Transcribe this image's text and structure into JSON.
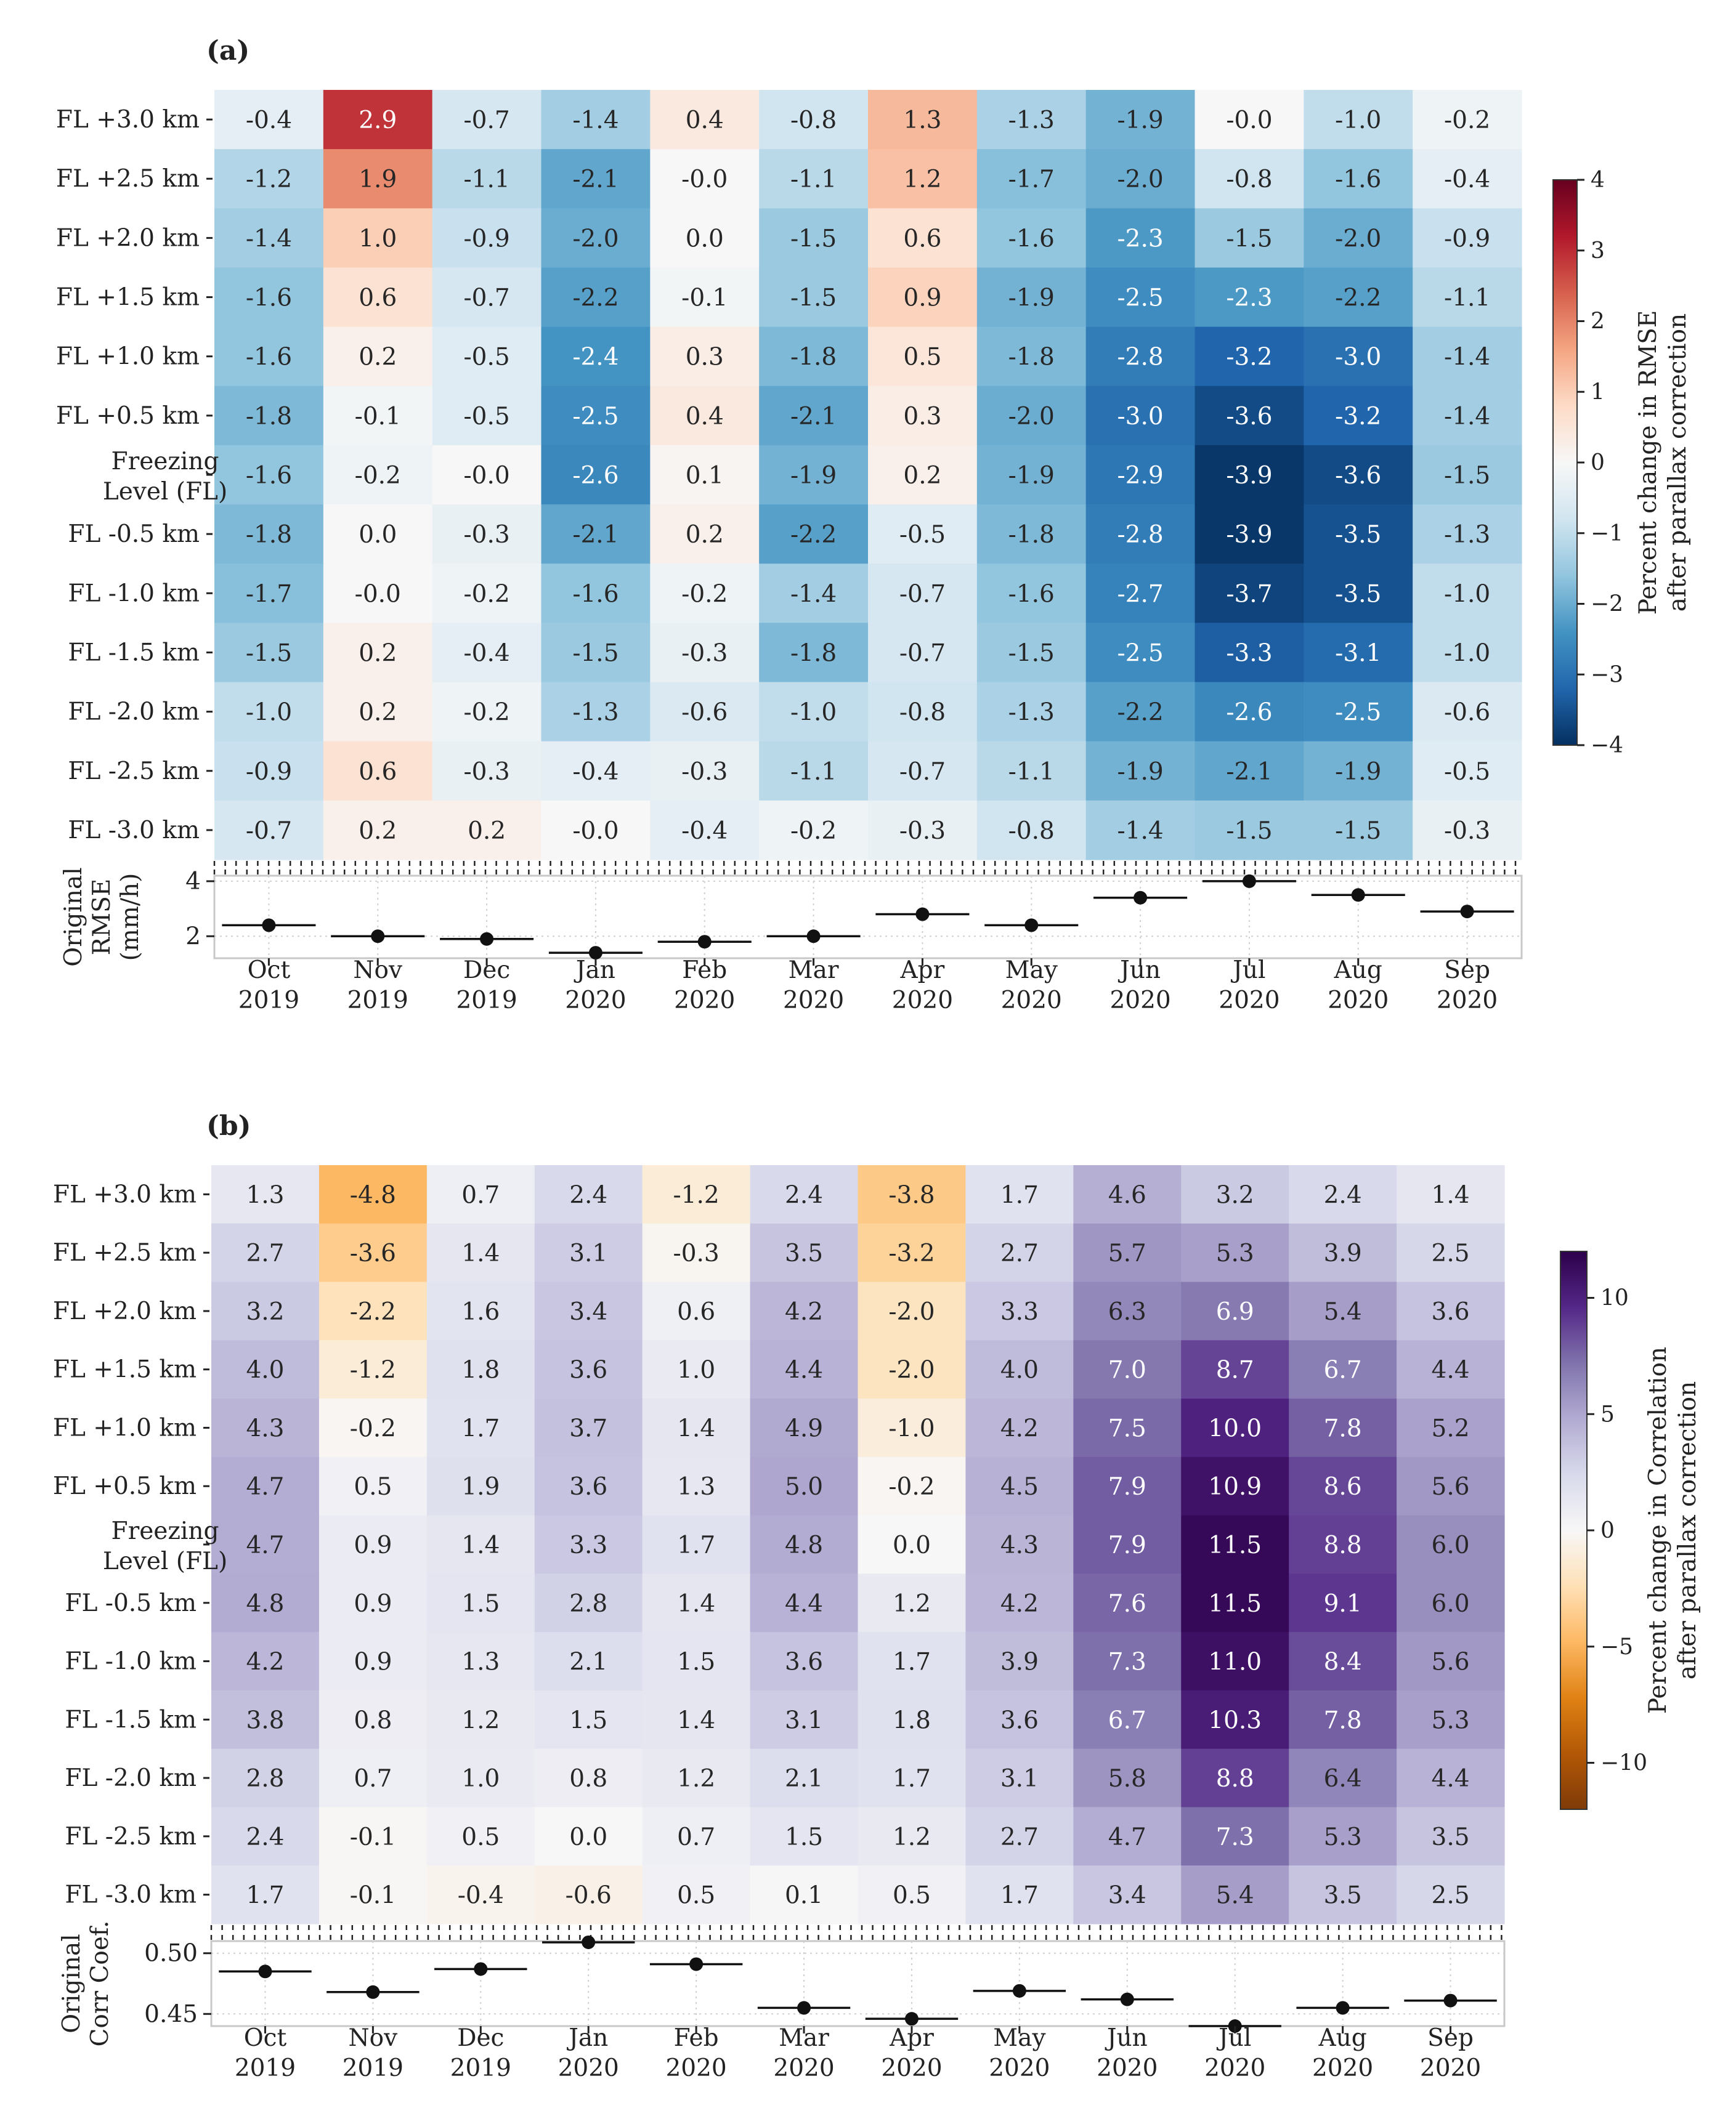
{
  "chart_data": [
    {
      "panel": "(a)",
      "type": "heatmap",
      "metric": "RMSE",
      "rows": [
        "FL +3.0 km",
        "FL +2.5 km",
        "FL +2.0 km",
        "FL +1.5 km",
        "FL +1.0 km",
        "FL +0.5 km",
        "Freezing Level (FL)",
        "FL -0.5 km",
        "FL -1.0 km",
        "FL -1.5 km",
        "FL -2.0 km",
        "FL -2.5 km",
        "FL -3.0 km"
      ],
      "columns": [
        "Oct 2019",
        "Nov 2019",
        "Dec 2019",
        "Jan 2020",
        "Feb 2020",
        "Mar 2020",
        "Apr 2020",
        "May 2020",
        "Jun 2020",
        "Jul 2020",
        "Aug 2020",
        "Sep 2020"
      ],
      "values": [
        [
          "-0.4",
          "2.9",
          "-0.7",
          "-1.4",
          "0.4",
          "-0.8",
          "1.3",
          "-1.3",
          "-1.9",
          "-0.0",
          "-1.0",
          "-0.2"
        ],
        [
          "-1.2",
          "1.9",
          "-1.1",
          "-2.1",
          "-0.0",
          "-1.1",
          "1.2",
          "-1.7",
          "-2.0",
          "-0.8",
          "-1.6",
          "-0.4"
        ],
        [
          "-1.4",
          "1.0",
          "-0.9",
          "-2.0",
          "0.0",
          "-1.5",
          "0.6",
          "-1.6",
          "-2.3",
          "-1.5",
          "-2.0",
          "-0.9"
        ],
        [
          "-1.6",
          "0.6",
          "-0.7",
          "-2.2",
          "-0.1",
          "-1.5",
          "0.9",
          "-1.9",
          "-2.5",
          "-2.3",
          "-2.2",
          "-1.1"
        ],
        [
          "-1.6",
          "0.2",
          "-0.5",
          "-2.4",
          "0.3",
          "-1.8",
          "0.5",
          "-1.8",
          "-2.8",
          "-3.2",
          "-3.0",
          "-1.4"
        ],
        [
          "-1.8",
          "-0.1",
          "-0.5",
          "-2.5",
          "0.4",
          "-2.1",
          "0.3",
          "-2.0",
          "-3.0",
          "-3.6",
          "-3.2",
          "-1.4"
        ],
        [
          "-1.6",
          "-0.2",
          "-0.0",
          "-2.6",
          "0.1",
          "-1.9",
          "0.2",
          "-1.9",
          "-2.9",
          "-3.9",
          "-3.6",
          "-1.5"
        ],
        [
          "-1.8",
          "0.0",
          "-0.3",
          "-2.1",
          "0.2",
          "-2.2",
          "-0.5",
          "-1.8",
          "-2.8",
          "-3.9",
          "-3.5",
          "-1.3"
        ],
        [
          "-1.7",
          "-0.0",
          "-0.2",
          "-1.6",
          "-0.2",
          "-1.4",
          "-0.7",
          "-1.6",
          "-2.7",
          "-3.7",
          "-3.5",
          "-1.0"
        ],
        [
          "-1.5",
          "0.2",
          "-0.4",
          "-1.5",
          "-0.3",
          "-1.8",
          "-0.7",
          "-1.5",
          "-2.5",
          "-3.3",
          "-3.1",
          "-1.0"
        ],
        [
          "-1.0",
          "0.2",
          "-0.2",
          "-1.3",
          "-0.6",
          "-1.0",
          "-0.8",
          "-1.3",
          "-2.2",
          "-2.6",
          "-2.5",
          "-0.6"
        ],
        [
          "-0.9",
          "0.6",
          "-0.3",
          "-0.4",
          "-0.3",
          "-1.1",
          "-0.7",
          "-1.1",
          "-1.9",
          "-2.1",
          "-1.9",
          "-0.5"
        ],
        [
          "-0.7",
          "0.2",
          "0.2",
          "-0.0",
          "-0.4",
          "-0.2",
          "-0.3",
          "-0.8",
          "-1.4",
          "-1.5",
          "-1.5",
          "-0.3"
        ]
      ],
      "colormap": "RdBu_r",
      "colorbar": {
        "label": "Percent change in RMSE after parallax correction",
        "range": [
          -4,
          4
        ],
        "ticks": [
          "4",
          "3",
          "2",
          "1",
          "0",
          "−1",
          "−2",
          "−3",
          "−4"
        ]
      },
      "subplot": {
        "ylabel": "Original RMSE (mm/h)",
        "ylim": [
          1.2,
          4.2
        ],
        "yticks": [
          "4",
          "2"
        ],
        "values": [
          2.4,
          2.0,
          1.9,
          1.4,
          1.8,
          2.0,
          2.8,
          2.4,
          3.4,
          4.0,
          3.5,
          2.9
        ]
      }
    },
    {
      "panel": "(b)",
      "type": "heatmap",
      "metric": "Correlation",
      "rows": [
        "FL +3.0 km",
        "FL +2.5 km",
        "FL +2.0 km",
        "FL +1.5 km",
        "FL +1.0 km",
        "FL +0.5 km",
        "Freezing Level (FL)",
        "FL -0.5 km",
        "FL -1.0 km",
        "FL -1.5 km",
        "FL -2.0 km",
        "FL -2.5 km",
        "FL -3.0 km"
      ],
      "columns": [
        "Oct 2019",
        "Nov 2019",
        "Dec 2019",
        "Jan 2020",
        "Feb 2020",
        "Mar 2020",
        "Apr 2020",
        "May 2020",
        "Jun 2020",
        "Jul 2020",
        "Aug 2020",
        "Sep 2020"
      ],
      "values": [
        [
          "1.3",
          "-4.8",
          "0.7",
          "2.4",
          "-1.2",
          "2.4",
          "-3.8",
          "1.7",
          "4.6",
          "3.2",
          "2.4",
          "1.4"
        ],
        [
          "2.7",
          "-3.6",
          "1.4",
          "3.1",
          "-0.3",
          "3.5",
          "-3.2",
          "2.7",
          "5.7",
          "5.3",
          "3.9",
          "2.5"
        ],
        [
          "3.2",
          "-2.2",
          "1.6",
          "3.4",
          "0.6",
          "4.2",
          "-2.0",
          "3.3",
          "6.3",
          "6.9",
          "5.4",
          "3.6"
        ],
        [
          "4.0",
          "-1.2",
          "1.8",
          "3.6",
          "1.0",
          "4.4",
          "-2.0",
          "4.0",
          "7.0",
          "8.7",
          "6.7",
          "4.4"
        ],
        [
          "4.3",
          "-0.2",
          "1.7",
          "3.7",
          "1.4",
          "4.9",
          "-1.0",
          "4.2",
          "7.5",
          "10.0",
          "7.8",
          "5.2"
        ],
        [
          "4.7",
          "0.5",
          "1.9",
          "3.6",
          "1.3",
          "5.0",
          "-0.2",
          "4.5",
          "7.9",
          "10.9",
          "8.6",
          "5.6"
        ],
        [
          "4.7",
          "0.9",
          "1.4",
          "3.3",
          "1.7",
          "4.8",
          "0.0",
          "4.3",
          "7.9",
          "11.5",
          "8.8",
          "6.0"
        ],
        [
          "4.8",
          "0.9",
          "1.5",
          "2.8",
          "1.4",
          "4.4",
          "1.2",
          "4.2",
          "7.6",
          "11.5",
          "9.1",
          "6.0"
        ],
        [
          "4.2",
          "0.9",
          "1.3",
          "2.1",
          "1.5",
          "3.6",
          "1.7",
          "3.9",
          "7.3",
          "11.0",
          "8.4",
          "5.6"
        ],
        [
          "3.8",
          "0.8",
          "1.2",
          "1.5",
          "1.4",
          "3.1",
          "1.8",
          "3.6",
          "6.7",
          "10.3",
          "7.8",
          "5.3"
        ],
        [
          "2.8",
          "0.7",
          "1.0",
          "0.8",
          "1.2",
          "2.1",
          "1.7",
          "3.1",
          "5.8",
          "8.8",
          "6.4",
          "4.4"
        ],
        [
          "2.4",
          "-0.1",
          "0.5",
          "0.0",
          "0.7",
          "1.5",
          "1.2",
          "2.7",
          "4.7",
          "7.3",
          "5.3",
          "3.5"
        ],
        [
          "1.7",
          "-0.1",
          "-0.4",
          "-0.6",
          "0.5",
          "0.1",
          "0.5",
          "1.7",
          "3.4",
          "5.4",
          "3.5",
          "2.5"
        ]
      ],
      "colormap": "PuOr",
      "colorbar": {
        "label": "Percent change in Correlation after parallax correction",
        "range": [
          -12,
          12
        ],
        "ticks": [
          "10",
          "5",
          "0",
          "−5",
          "−10"
        ]
      },
      "subplot": {
        "ylabel": "Original Corr Coef.",
        "ylim": [
          0.44,
          0.51
        ],
        "yticks": [
          "0.50",
          "0.45"
        ],
        "values": [
          0.485,
          0.468,
          0.487,
          0.509,
          0.491,
          0.455,
          0.446,
          0.469,
          0.462,
          0.44,
          0.455,
          0.461
        ]
      }
    }
  ]
}
